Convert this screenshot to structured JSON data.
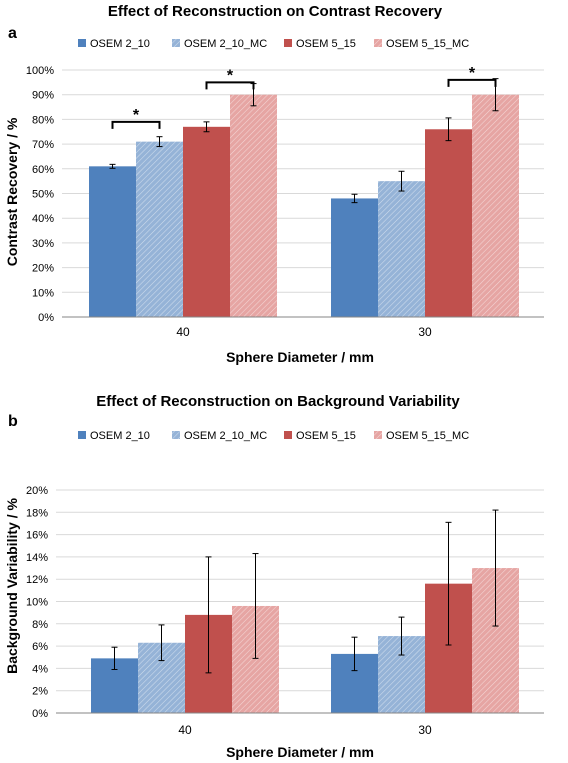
{
  "chart_data": [
    {
      "panel_label": "a",
      "type": "bar",
      "title": "Effect of Reconstruction on Contrast Recovery",
      "xlabel": "Sphere Diameter / mm",
      "ylabel": "Contrast Recovery / %",
      "categories": [
        "40",
        "30"
      ],
      "ylim": [
        0,
        100
      ],
      "yticks": [
        0,
        10,
        20,
        30,
        40,
        50,
        60,
        70,
        80,
        90,
        100
      ],
      "ytick_suffix": "%",
      "grid": true,
      "legend_position": "top",
      "series": [
        {
          "name": "OSEM 2_10",
          "values": [
            61,
            48
          ],
          "err": [
            0.8,
            1.7
          ],
          "color": "#4f81bd",
          "hatched": false
        },
        {
          "name": "OSEM 2_10_MC",
          "values": [
            71,
            55
          ],
          "err": [
            2.0,
            4.0
          ],
          "color": "#95b3d7",
          "hatched": true
        },
        {
          "name": "OSEM 5_15",
          "values": [
            77,
            76
          ],
          "err": [
            2.0,
            4.6
          ],
          "color": "#c0504d",
          "hatched": false
        },
        {
          "name": "OSEM 5_15_MC",
          "values": [
            90,
            90
          ],
          "err": [
            4.5,
            6.5
          ],
          "color": "#e6a5a3",
          "hatched": true
        }
      ],
      "significance": [
        {
          "category": "40",
          "from_series": 0,
          "to_series": 1,
          "level": 79,
          "label": "*"
        },
        {
          "category": "40",
          "from_series": 2,
          "to_series": 3,
          "level": 95,
          "label": "*"
        },
        {
          "category": "30",
          "from_series": 2,
          "to_series": 3,
          "level": 96,
          "label": "*"
        }
      ]
    },
    {
      "panel_label": "b",
      "type": "bar",
      "title": "Effect of Reconstruction on Background Variability",
      "xlabel": "Sphere Diameter / mm",
      "ylabel": "Background Variability / %",
      "categories": [
        "40",
        "30"
      ],
      "ylim": [
        0,
        20
      ],
      "yticks": [
        0,
        2,
        4,
        6,
        8,
        10,
        12,
        14,
        16,
        18,
        20
      ],
      "ytick_suffix": "%",
      "grid": true,
      "legend_position": "top",
      "series": [
        {
          "name": "OSEM 2_10",
          "values": [
            4.9,
            5.3
          ],
          "err": [
            1.0,
            1.5
          ],
          "color": "#4f81bd",
          "hatched": false
        },
        {
          "name": "OSEM 2_10_MC",
          "values": [
            6.3,
            6.9
          ],
          "err": [
            1.6,
            1.7
          ],
          "color": "#95b3d7",
          "hatched": true
        },
        {
          "name": "OSEM 5_15",
          "values": [
            8.8,
            11.6
          ],
          "err": [
            5.2,
            5.5
          ],
          "color": "#c0504d",
          "hatched": false
        },
        {
          "name": "OSEM 5_15_MC",
          "values": [
            9.6,
            13.0
          ],
          "err": [
            4.7,
            5.2
          ],
          "color": "#e6a5a3",
          "hatched": true
        }
      ],
      "significance": []
    }
  ]
}
